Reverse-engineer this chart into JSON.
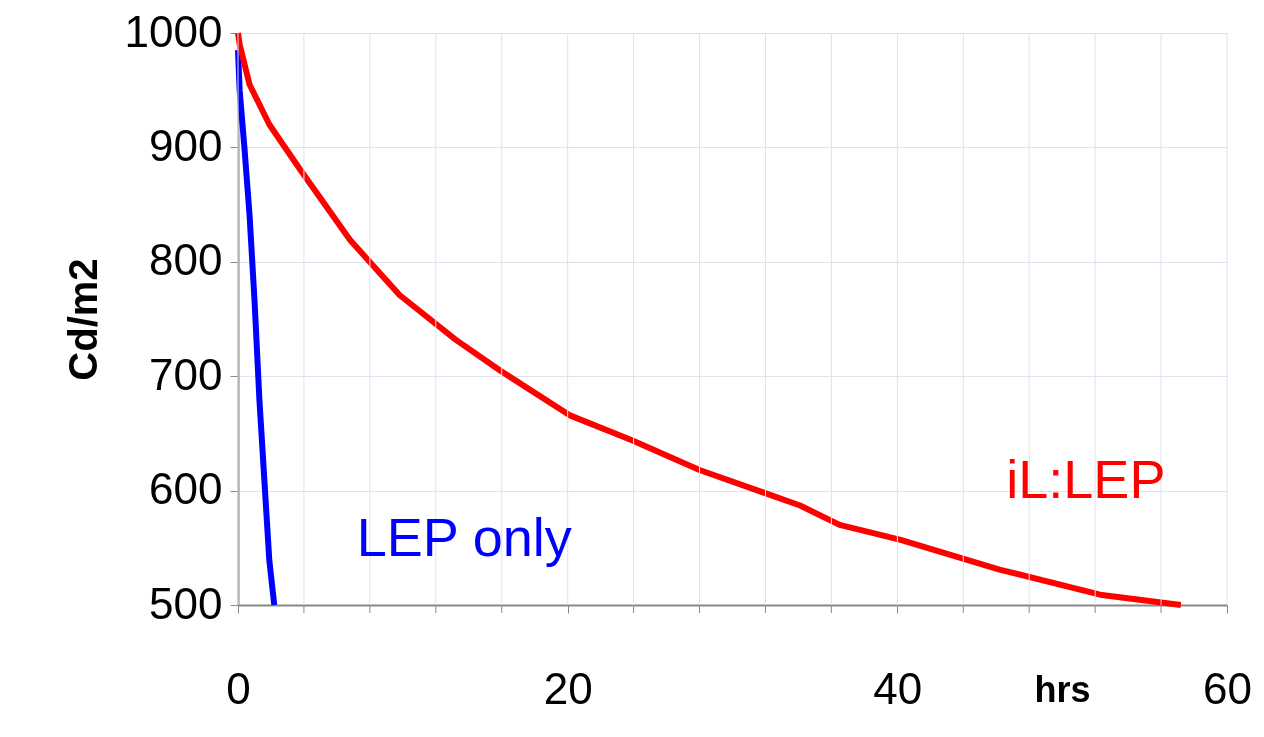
{
  "chart_data": {
    "type": "line",
    "xlabel": "hrs",
    "ylabel": "Cd/m2",
    "xlim": [
      0,
      60
    ],
    "ylim": [
      500,
      1000
    ],
    "xticks": [
      0,
      {
        "value": 4,
        "label": null
      },
      {
        "value": 8,
        "label": null
      },
      {
        "value": 12,
        "label": null
      },
      {
        "value": 16,
        "label": null
      },
      20,
      {
        "value": 24,
        "label": null
      },
      {
        "value": 28,
        "label": null
      },
      {
        "value": 32,
        "label": null
      },
      {
        "value": 36,
        "label": null
      },
      40,
      {
        "value": 44,
        "label": null
      },
      {
        "value": 48,
        "label": null
      },
      {
        "value": 52,
        "label": null
      },
      {
        "value": 56,
        "label": null
      },
      60
    ],
    "yticks": [
      500,
      600,
      700,
      800,
      900,
      1000
    ],
    "grid": true,
    "legend": false,
    "marker": "none",
    "line_style": "solid",
    "series": [
      {
        "name": "LEP only",
        "color": "#0000ff",
        "x": [
          0,
          0.1,
          0.4,
          0.7,
          1.0,
          1.3,
          1.6,
          1.9,
          2.2
        ],
        "values": [
          985,
          950,
          898,
          841,
          767,
          679,
          609,
          539,
          500
        ]
      },
      {
        "name": "iL:LEP",
        "color": "#ff0000",
        "x": [
          0,
          0.1,
          0.7,
          1.9,
          3.8,
          6.8,
          9.8,
          13.2,
          15.9,
          20.1,
          23.9,
          28,
          34.1,
          36.5,
          40.2,
          46.2,
          52.3,
          57.2
        ],
        "values": [
          1000,
          990,
          955,
          920,
          880,
          819,
          771,
          732,
          705,
          666,
          644,
          618,
          587,
          570,
          557,
          531,
          509,
          500
        ]
      }
    ]
  }
}
